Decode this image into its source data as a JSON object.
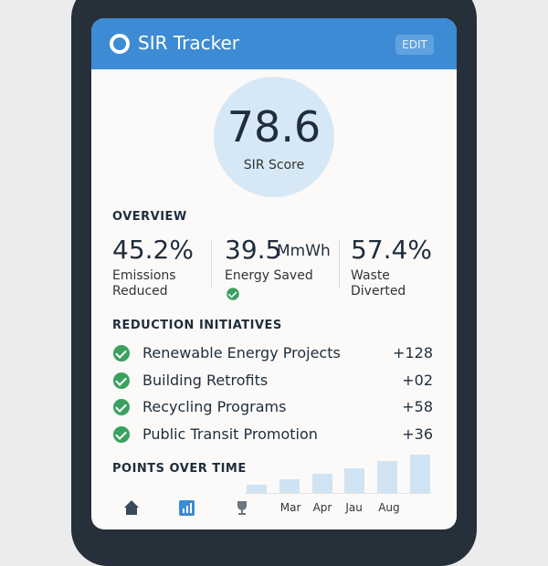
{
  "header": {
    "title": "SIR Tracker",
    "action": "EDIT"
  },
  "score": {
    "value": 78.6,
    "label": "SIR Score"
  },
  "overview": {
    "title": "OVERVIEW",
    "stats": [
      {
        "value": "45.2%",
        "label": "Emissions Reduced"
      },
      {
        "value": "39.5",
        "unit": "MmWh",
        "label": "Energy Saved"
      },
      {
        "value": "57.4%",
        "label": "Waste Diverted"
      }
    ]
  },
  "initiatives": {
    "title": "REDUCTION INITIATIVES",
    "items": [
      {
        "name": "Renewable Energy Projects",
        "points": "+128"
      },
      {
        "name": "Building Retrofits",
        "points": "+02"
      },
      {
        "name": "Recycling Programs",
        "points": "+58"
      },
      {
        "name": "Public Transit Promotion",
        "points": "+36"
      }
    ]
  },
  "points_chart": {
    "title": "POINTS OVER TIME",
    "values": [
      9,
      15,
      21,
      27,
      35,
      42
    ],
    "labels": [
      null,
      "Mar",
      "Apr",
      "Jau",
      "Aug",
      null
    ]
  }
}
